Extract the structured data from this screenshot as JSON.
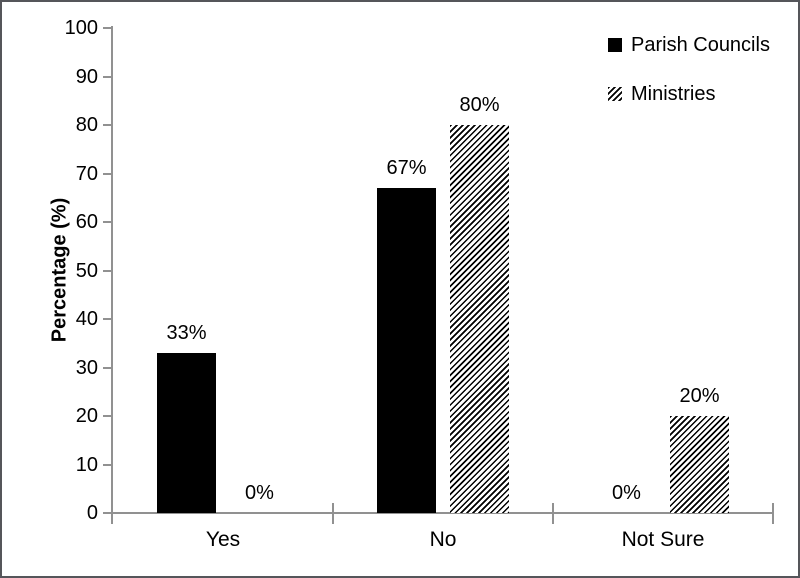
{
  "figure": {
    "background": "#ffffff",
    "border_color": "#55565a"
  },
  "chart_data": {
    "type": "bar",
    "title": "",
    "xlabel": "",
    "ylabel": "Percentage (%)",
    "categories": [
      "Yes",
      "No",
      "Not Sure"
    ],
    "series": [
      {
        "name": "Parish Councils",
        "fill": "solid",
        "color": "#000000",
        "values": [
          33,
          67,
          0
        ],
        "data_labels": [
          "33%",
          "67%",
          "0%"
        ]
      },
      {
        "name": "Ministries",
        "fill": "diagonal-hatch",
        "color": "#000000",
        "values": [
          0,
          80,
          20
        ],
        "data_labels": [
          "0%",
          "80%",
          "20%"
        ]
      }
    ],
    "ylim": [
      0,
      100
    ],
    "yticks": [
      0,
      10,
      20,
      30,
      40,
      50,
      60,
      70,
      80,
      90,
      100
    ],
    "grid": false,
    "legend_position": "top-right",
    "axis_color": "#919191",
    "text_color": "#000000",
    "data_label_suffix": "%"
  }
}
